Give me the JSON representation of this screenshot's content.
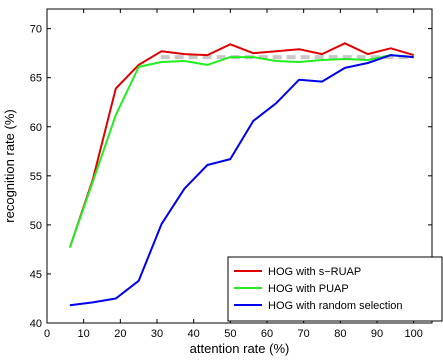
{
  "chart_data": {
    "type": "line",
    "xlabel": "attention rate (%)",
    "ylabel": "recognition rate (%)",
    "xlim": [
      0,
      105
    ],
    "ylim": [
      40,
      72
    ],
    "xticks": [
      0,
      10,
      20,
      30,
      40,
      50,
      60,
      70,
      80,
      90,
      100
    ],
    "yticks": [
      40,
      45,
      50,
      55,
      60,
      65,
      70
    ],
    "grid": false,
    "legend_position": "bottom-right",
    "reference_line": {
      "y": 67.1,
      "x_range": [
        31,
        100
      ],
      "color": "#c8c8c8",
      "style": "dashed"
    },
    "x": [
      6.25,
      12.5,
      18.75,
      25,
      31.25,
      37.5,
      43.75,
      50,
      56.25,
      62.5,
      68.75,
      75,
      81.25,
      87.5,
      93.75,
      100
    ],
    "series": [
      {
        "name": "HOG with s−RUAP",
        "color": "#e00000",
        "values": [
          47.7,
          54.6,
          63.9,
          66.3,
          67.7,
          67.4,
          67.3,
          68.4,
          67.5,
          67.7,
          67.9,
          67.4,
          68.5,
          67.4,
          68.0,
          67.3
        ]
      },
      {
        "name": "HOG with PUAP",
        "color": "#22ee22",
        "values": [
          47.7,
          54.4,
          61.2,
          66.1,
          66.6,
          66.7,
          66.3,
          67.1,
          67.1,
          66.7,
          66.6,
          66.8,
          66.9,
          66.8,
          67.3,
          67.1
        ]
      },
      {
        "name": "HOG with random selection",
        "color": "#0000ee",
        "values": [
          41.8,
          42.1,
          42.5,
          44.3,
          50.1,
          53.7,
          56.1,
          56.7,
          60.6,
          62.4,
          64.8,
          64.6,
          66.0,
          66.5,
          67.3,
          67.1
        ]
      }
    ]
  }
}
